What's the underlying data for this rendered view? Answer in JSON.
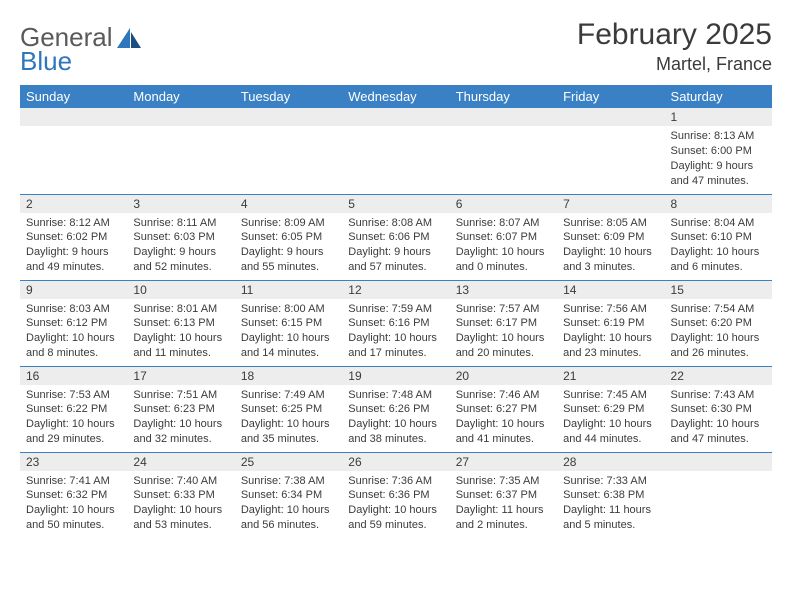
{
  "brand": {
    "word1": "General",
    "word2": "Blue"
  },
  "title": "February 2025",
  "location": "Martel, France",
  "colors": {
    "header_bg": "#3a80c4",
    "header_text": "#ffffff",
    "daynum_bg": "#ededed",
    "rule": "#3a80c4",
    "text": "#3b3b3b",
    "logo_gray": "#5a5a5a",
    "logo_blue": "#2f77bb"
  },
  "day_headers": [
    "Sunday",
    "Monday",
    "Tuesday",
    "Wednesday",
    "Thursday",
    "Friday",
    "Saturday"
  ],
  "weeks": [
    [
      {
        "n": "",
        "lines": []
      },
      {
        "n": "",
        "lines": []
      },
      {
        "n": "",
        "lines": []
      },
      {
        "n": "",
        "lines": []
      },
      {
        "n": "",
        "lines": []
      },
      {
        "n": "",
        "lines": []
      },
      {
        "n": "1",
        "lines": [
          "Sunrise: 8:13 AM",
          "Sunset: 6:00 PM",
          "Daylight: 9 hours",
          "and 47 minutes."
        ]
      }
    ],
    [
      {
        "n": "2",
        "lines": [
          "Sunrise: 8:12 AM",
          "Sunset: 6:02 PM",
          "Daylight: 9 hours",
          "and 49 minutes."
        ]
      },
      {
        "n": "3",
        "lines": [
          "Sunrise: 8:11 AM",
          "Sunset: 6:03 PM",
          "Daylight: 9 hours",
          "and 52 minutes."
        ]
      },
      {
        "n": "4",
        "lines": [
          "Sunrise: 8:09 AM",
          "Sunset: 6:05 PM",
          "Daylight: 9 hours",
          "and 55 minutes."
        ]
      },
      {
        "n": "5",
        "lines": [
          "Sunrise: 8:08 AM",
          "Sunset: 6:06 PM",
          "Daylight: 9 hours",
          "and 57 minutes."
        ]
      },
      {
        "n": "6",
        "lines": [
          "Sunrise: 8:07 AM",
          "Sunset: 6:07 PM",
          "Daylight: 10 hours",
          "and 0 minutes."
        ]
      },
      {
        "n": "7",
        "lines": [
          "Sunrise: 8:05 AM",
          "Sunset: 6:09 PM",
          "Daylight: 10 hours",
          "and 3 minutes."
        ]
      },
      {
        "n": "8",
        "lines": [
          "Sunrise: 8:04 AM",
          "Sunset: 6:10 PM",
          "Daylight: 10 hours",
          "and 6 minutes."
        ]
      }
    ],
    [
      {
        "n": "9",
        "lines": [
          "Sunrise: 8:03 AM",
          "Sunset: 6:12 PM",
          "Daylight: 10 hours",
          "and 8 minutes."
        ]
      },
      {
        "n": "10",
        "lines": [
          "Sunrise: 8:01 AM",
          "Sunset: 6:13 PM",
          "Daylight: 10 hours",
          "and 11 minutes."
        ]
      },
      {
        "n": "11",
        "lines": [
          "Sunrise: 8:00 AM",
          "Sunset: 6:15 PM",
          "Daylight: 10 hours",
          "and 14 minutes."
        ]
      },
      {
        "n": "12",
        "lines": [
          "Sunrise: 7:59 AM",
          "Sunset: 6:16 PM",
          "Daylight: 10 hours",
          "and 17 minutes."
        ]
      },
      {
        "n": "13",
        "lines": [
          "Sunrise: 7:57 AM",
          "Sunset: 6:17 PM",
          "Daylight: 10 hours",
          "and 20 minutes."
        ]
      },
      {
        "n": "14",
        "lines": [
          "Sunrise: 7:56 AM",
          "Sunset: 6:19 PM",
          "Daylight: 10 hours",
          "and 23 minutes."
        ]
      },
      {
        "n": "15",
        "lines": [
          "Sunrise: 7:54 AM",
          "Sunset: 6:20 PM",
          "Daylight: 10 hours",
          "and 26 minutes."
        ]
      }
    ],
    [
      {
        "n": "16",
        "lines": [
          "Sunrise: 7:53 AM",
          "Sunset: 6:22 PM",
          "Daylight: 10 hours",
          "and 29 minutes."
        ]
      },
      {
        "n": "17",
        "lines": [
          "Sunrise: 7:51 AM",
          "Sunset: 6:23 PM",
          "Daylight: 10 hours",
          "and 32 minutes."
        ]
      },
      {
        "n": "18",
        "lines": [
          "Sunrise: 7:49 AM",
          "Sunset: 6:25 PM",
          "Daylight: 10 hours",
          "and 35 minutes."
        ]
      },
      {
        "n": "19",
        "lines": [
          "Sunrise: 7:48 AM",
          "Sunset: 6:26 PM",
          "Daylight: 10 hours",
          "and 38 minutes."
        ]
      },
      {
        "n": "20",
        "lines": [
          "Sunrise: 7:46 AM",
          "Sunset: 6:27 PM",
          "Daylight: 10 hours",
          "and 41 minutes."
        ]
      },
      {
        "n": "21",
        "lines": [
          "Sunrise: 7:45 AM",
          "Sunset: 6:29 PM",
          "Daylight: 10 hours",
          "and 44 minutes."
        ]
      },
      {
        "n": "22",
        "lines": [
          "Sunrise: 7:43 AM",
          "Sunset: 6:30 PM",
          "Daylight: 10 hours",
          "and 47 minutes."
        ]
      }
    ],
    [
      {
        "n": "23",
        "lines": [
          "Sunrise: 7:41 AM",
          "Sunset: 6:32 PM",
          "Daylight: 10 hours",
          "and 50 minutes."
        ]
      },
      {
        "n": "24",
        "lines": [
          "Sunrise: 7:40 AM",
          "Sunset: 6:33 PM",
          "Daylight: 10 hours",
          "and 53 minutes."
        ]
      },
      {
        "n": "25",
        "lines": [
          "Sunrise: 7:38 AM",
          "Sunset: 6:34 PM",
          "Daylight: 10 hours",
          "and 56 minutes."
        ]
      },
      {
        "n": "26",
        "lines": [
          "Sunrise: 7:36 AM",
          "Sunset: 6:36 PM",
          "Daylight: 10 hours",
          "and 59 minutes."
        ]
      },
      {
        "n": "27",
        "lines": [
          "Sunrise: 7:35 AM",
          "Sunset: 6:37 PM",
          "Daylight: 11 hours",
          "and 2 minutes."
        ]
      },
      {
        "n": "28",
        "lines": [
          "Sunrise: 7:33 AM",
          "Sunset: 6:38 PM",
          "Daylight: 11 hours",
          "and 5 minutes."
        ]
      },
      {
        "n": "",
        "lines": []
      }
    ]
  ]
}
